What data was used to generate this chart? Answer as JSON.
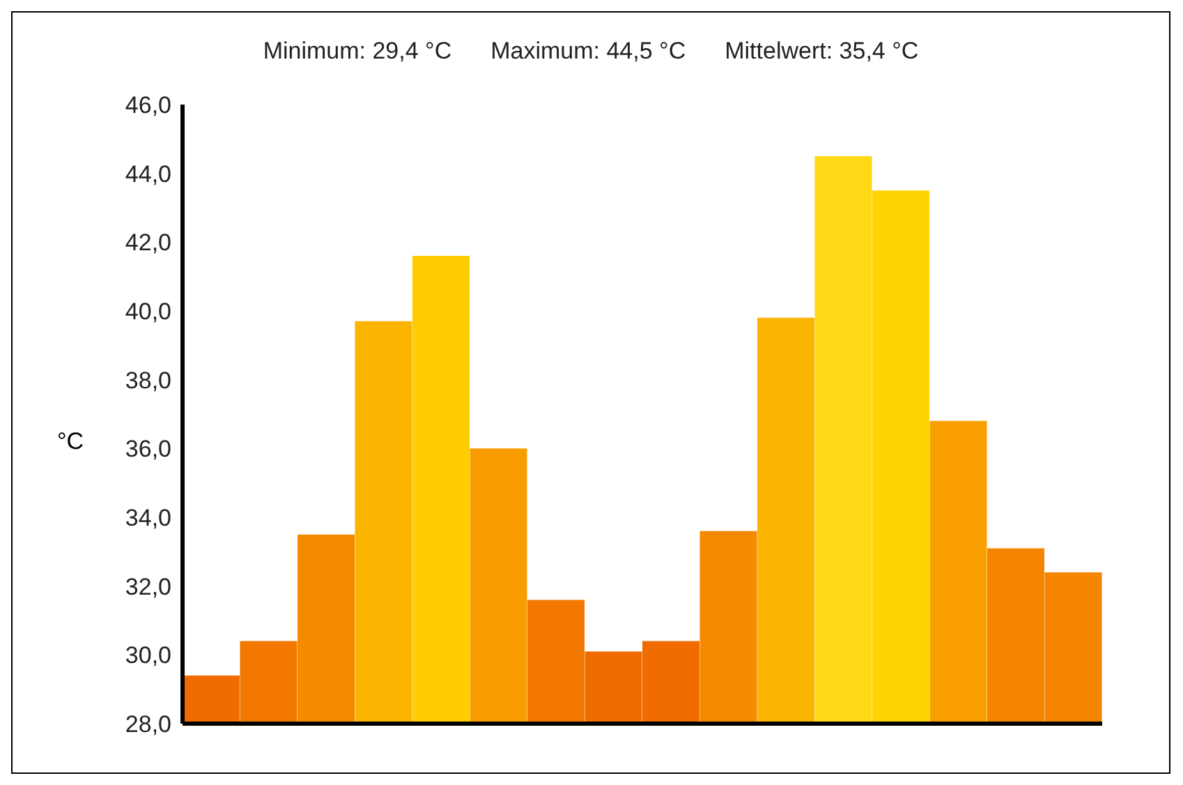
{
  "chart_data": {
    "type": "bar",
    "annotations": [
      "Minimum: 29,4 °C",
      "Maximum: 44,5 °C",
      "Mittelwert: 35,4 °C"
    ],
    "ylabel": "°C",
    "categories": [
      null,
      null,
      null,
      null,
      null,
      null,
      null,
      null,
      null,
      null,
      null,
      null,
      null,
      null,
      null,
      null
    ],
    "values": [
      29.4,
      30.4,
      33.5,
      39.7,
      41.6,
      36.0,
      31.6,
      30.1,
      30.4,
      33.6,
      39.8,
      44.5,
      43.5,
      36.8,
      33.1,
      32.4
    ],
    "colors": [
      "#f06c00",
      "#f27800",
      "#f58a00",
      "#fbb400",
      "#ffcc00",
      "#f99c00",
      "#f27800",
      "#f06c00",
      "#f06c00",
      "#f58a00",
      "#fbb400",
      "#ffd816",
      "#ffd400",
      "#f9a000",
      "#f58400",
      "#f58400"
    ],
    "ylim": [
      28,
      46
    ],
    "yticks": [
      {
        "value": 28,
        "label": "28,0"
      },
      {
        "value": 30,
        "label": "30,0"
      },
      {
        "value": 32,
        "label": "32,0"
      },
      {
        "value": 34,
        "label": "34,0"
      },
      {
        "value": 36,
        "label": "36,0"
      },
      {
        "value": 38,
        "label": "38,0"
      },
      {
        "value": 40,
        "label": "40,0"
      },
      {
        "value": 42,
        "label": "42,0"
      },
      {
        "value": 44,
        "label": "44,0"
      },
      {
        "value": 46,
        "label": "46,0"
      }
    ],
    "grid": false,
    "legend": false
  }
}
